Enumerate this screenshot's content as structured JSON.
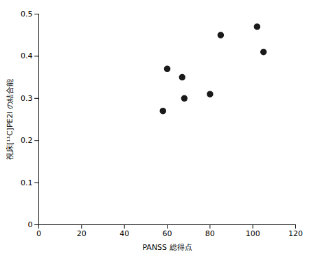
{
  "chart_data": {
    "type": "scatter",
    "x": [
      58,
      60,
      67,
      68,
      80,
      85,
      102,
      105
    ],
    "y": [
      0.27,
      0.37,
      0.35,
      0.3,
      0.31,
      0.45,
      0.47,
      0.41
    ],
    "xlabel": "PANSS 総得点",
    "ylabel": "視床[¹¹C]PE2I の結合能",
    "xlim": [
      0,
      120
    ],
    "ylim": [
      0,
      0.5
    ],
    "xticks": [
      0,
      20,
      40,
      60,
      80,
      100,
      120
    ],
    "yticks": [
      0,
      0.1,
      0.2,
      0.3,
      0.4,
      0.5
    ],
    "color": "#1a1a1a",
    "grid": false
  }
}
